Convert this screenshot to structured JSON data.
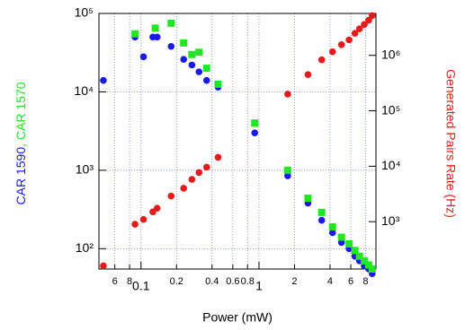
{
  "chart_data": {
    "type": "scatter",
    "xlabel": "Power (mW)",
    "ylabel_separator": ", ",
    "xscale": "log",
    "yscale": "log",
    "y2scale": "log",
    "grid": true,
    "xlim": [
      0.044,
      9.8
    ],
    "ylim": [
      55,
      100000
    ],
    "y2lim": [
      140,
      5700000
    ],
    "xticks": [
      {
        "value": 0.06,
        "label": "6"
      },
      {
        "value": 0.08,
        "label": "8"
      },
      0.1,
      0.2,
      0.4,
      0.6,
      0.8,
      1,
      2,
      4,
      6,
      8
    ],
    "yticks": [
      {
        "value": 100,
        "label": "10²"
      },
      {
        "value": 1000,
        "label": "10³"
      },
      {
        "value": 10000,
        "label": "10⁴"
      },
      {
        "value": 100000,
        "label": "10⁵"
      }
    ],
    "y2ticks": [
      {
        "value": 1000,
        "label": "10³"
      },
      {
        "value": 10000,
        "label": "10⁴"
      },
      {
        "value": 100000,
        "label": "10⁵"
      },
      {
        "value": 1000000,
        "label": "10⁶"
      }
    ],
    "series": [
      {
        "name": "CAR 1590",
        "color": "#1a1ae6",
        "marker": "circle",
        "x": [
          0.048,
          0.089,
          0.105,
          0.126,
          0.137,
          0.18,
          0.23,
          0.27,
          0.31,
          0.36,
          0.45,
          0.92,
          1.75,
          2.6,
          3.4,
          4.2,
          5.0,
          5.8,
          6.5,
          7.1,
          7.8,
          8.5,
          9.1
        ],
        "values": [
          14000,
          50000,
          28000,
          50000,
          50000,
          38000,
          26000,
          22000,
          18000,
          14000,
          11500,
          3000,
          850,
          380,
          230,
          160,
          120,
          100,
          80,
          70,
          60,
          55,
          48
        ]
      },
      {
        "name": "CAR 1570",
        "color": "#22e622",
        "marker": "square",
        "x": [
          0.089,
          0.132,
          0.18,
          0.23,
          0.27,
          0.31,
          0.36,
          0.45,
          0.92,
          1.75,
          2.6,
          3.4,
          4.2,
          5.0,
          5.8,
          6.5,
          7.1,
          7.8,
          8.5,
          9.1
        ],
        "values": [
          55000,
          65000,
          75000,
          42000,
          30000,
          32000,
          20000,
          12500,
          4000,
          1000,
          440,
          290,
          190,
          140,
          115,
          95,
          80,
          70,
          62,
          55
        ]
      },
      {
        "name": "Generated Pairs Rate (Hz)",
        "color": "#e61a1a",
        "marker": "circle",
        "axis": "y2",
        "x": [
          0.048,
          0.089,
          0.105,
          0.126,
          0.137,
          0.18,
          0.23,
          0.27,
          0.31,
          0.36,
          0.45,
          1.75,
          2.6,
          3.4,
          4.2,
          5.0,
          5.8,
          6.5,
          7.1,
          7.8,
          8.5,
          9.1
        ],
        "values": [
          160,
          900,
          1100,
          1500,
          1750,
          2900,
          4000,
          5800,
          7700,
          9600,
          14500,
          200000,
          450000,
          830000,
          1160000,
          1560000,
          1900000,
          2500000,
          3000000,
          3600000,
          4300000,
          5200000
        ]
      }
    ]
  }
}
